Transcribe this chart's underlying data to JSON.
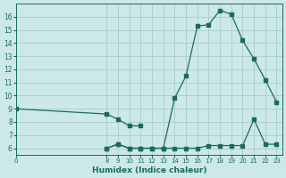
{
  "xlabel": "Humidex (Indice chaleur)",
  "bg_color": "#cce8e8",
  "grid_color_major": "#aacccc",
  "grid_color_minor": "#bbdddd",
  "line_color": "#1a6b5a",
  "line1_x": [
    0,
    8,
    9,
    10,
    11
  ],
  "line1_y": [
    9.0,
    8.6,
    8.2,
    7.7,
    7.7
  ],
  "line2_x": [
    8,
    9,
    10,
    11,
    12,
    13,
    14,
    15,
    16,
    17,
    18,
    19,
    20,
    21,
    22,
    23
  ],
  "line2_y": [
    6.0,
    6.3,
    6.0,
    6.0,
    6.0,
    6.0,
    9.8,
    11.5,
    15.3,
    15.4,
    16.5,
    16.2,
    14.2,
    12.8,
    11.2,
    9.5
  ],
  "line3_x": [
    8,
    9,
    10,
    11,
    12,
    13,
    14,
    15,
    16,
    17,
    18,
    19,
    20,
    21,
    22,
    23
  ],
  "line3_y": [
    6.0,
    6.3,
    6.0,
    6.0,
    6.0,
    6.0,
    6.0,
    6.0,
    6.0,
    6.2,
    6.2,
    6.2,
    6.2,
    8.2,
    6.3,
    6.3
  ],
  "ylim": [
    5.5,
    17.0
  ],
  "xlim": [
    0,
    23.5
  ],
  "yticks": [
    6,
    7,
    8,
    9,
    10,
    11,
    12,
    13,
    14,
    15,
    16
  ],
  "xtick_positions": [
    0,
    8,
    9,
    10,
    11,
    12,
    13,
    14,
    15,
    16,
    17,
    18,
    19,
    20,
    21,
    22,
    23
  ],
  "xtick_labels": [
    "0",
    "8",
    "9",
    "10",
    "11",
    "12",
    "13",
    "14",
    "15",
    "16",
    "17",
    "18",
    "19",
    "20",
    "21",
    "22",
    "23"
  ]
}
